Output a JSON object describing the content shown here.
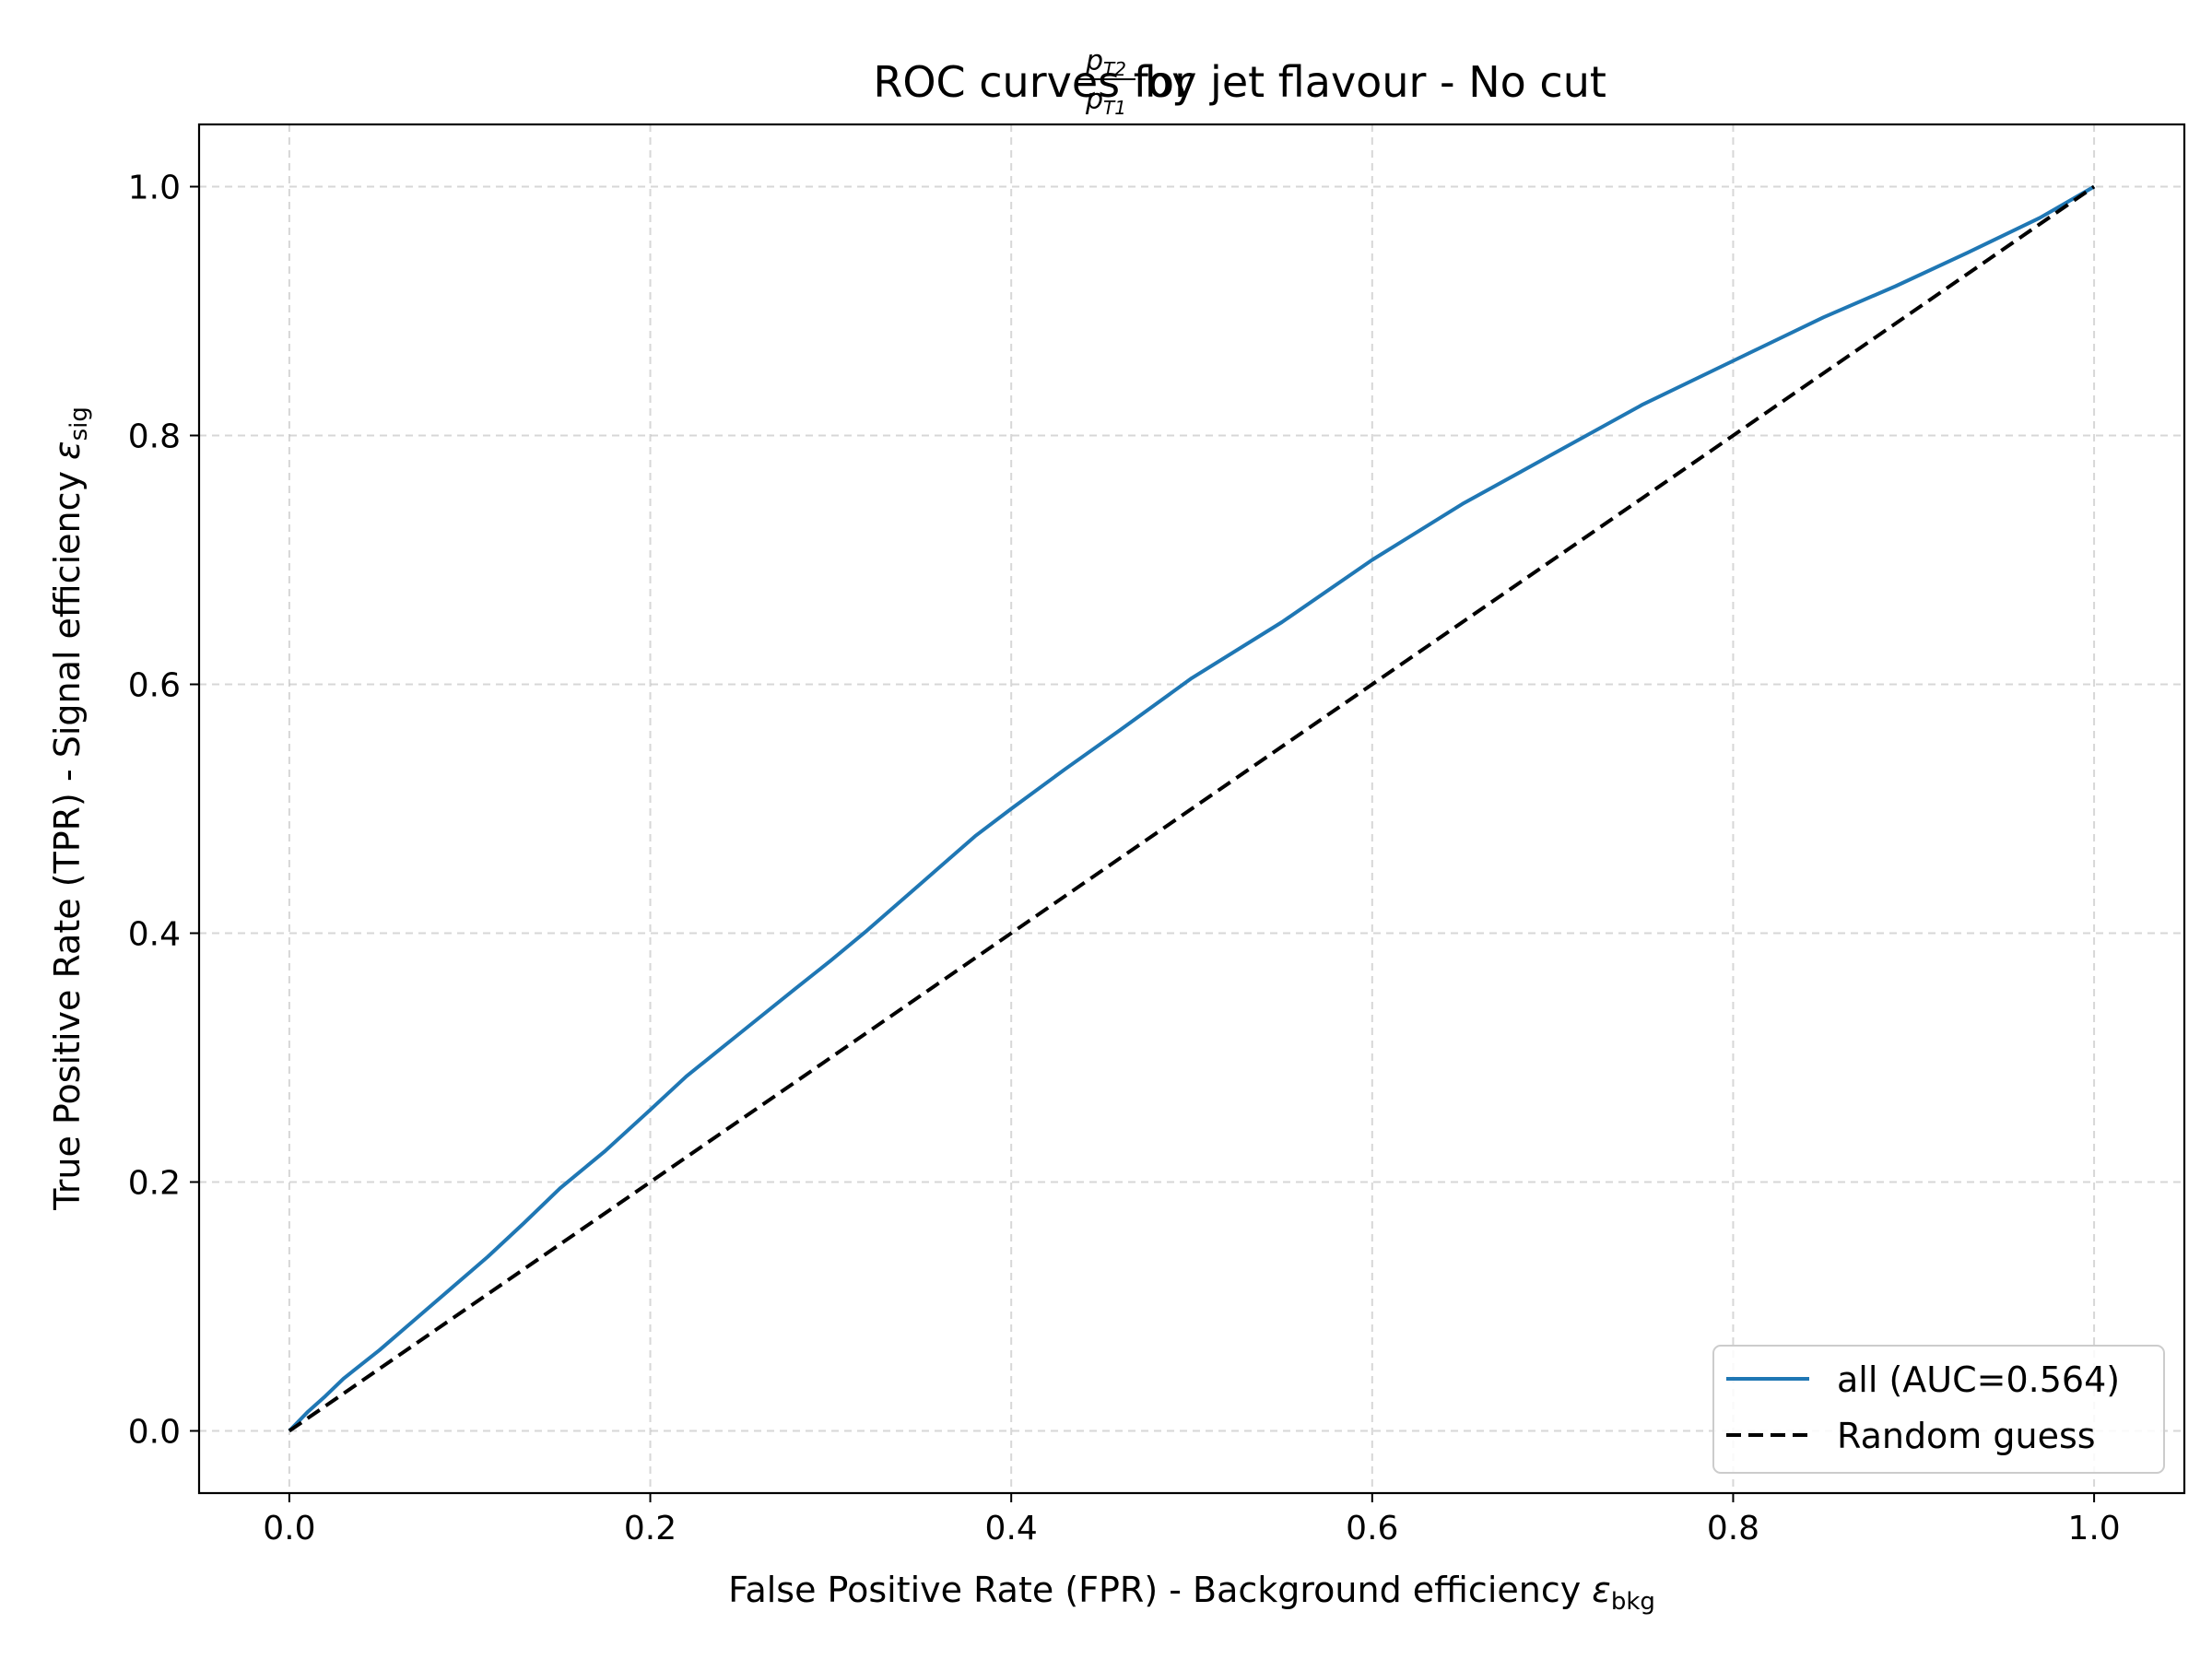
{
  "chart_data": {
    "type": "line",
    "title": {
      "prefix": "ROC curves for ",
      "fraction_numerator": "p",
      "fraction_numerator_sub": "T2",
      "fraction_denominator": "p",
      "fraction_denominator_sub": "T1",
      "suffix": " by jet flavour - No cut"
    },
    "xlabel": {
      "text": "False Positive Rate (FPR) - Background efficiency ",
      "symbol": "ε",
      "subscript": "bkg"
    },
    "ylabel": {
      "text": "True Positive Rate (TPR) - Signal efficiency ",
      "symbol": "ε",
      "subscript": "sig"
    },
    "xlim": [
      -0.05,
      1.05
    ],
    "ylim": [
      -0.05,
      1.05
    ],
    "xticks": [
      0.0,
      0.2,
      0.4,
      0.6,
      0.8,
      1.0
    ],
    "yticks": [
      0.0,
      0.2,
      0.4,
      0.6,
      0.8,
      1.0
    ],
    "xtick_labels": [
      "0.0",
      "0.2",
      "0.4",
      "0.6",
      "0.8",
      "1.0"
    ],
    "ytick_labels": [
      "0.0",
      "0.2",
      "0.4",
      "0.6",
      "0.8",
      "1.0"
    ],
    "grid": true,
    "legend_position": "lower-right",
    "series": [
      {
        "name": "all (AUC=0.564)",
        "style": "solid",
        "color": "#1f77b4",
        "x": [
          0.0,
          0.01,
          0.02,
          0.03,
          0.05,
          0.07,
          0.09,
          0.11,
          0.13,
          0.15,
          0.175,
          0.2,
          0.22,
          0.25,
          0.28,
          0.3,
          0.32,
          0.35,
          0.38,
          0.4,
          0.43,
          0.46,
          0.5,
          0.55,
          0.6,
          0.65,
          0.7,
          0.75,
          0.8,
          0.85,
          0.89,
          0.93,
          0.97,
          1.0
        ],
        "y": [
          0.0,
          0.015,
          0.028,
          0.042,
          0.065,
          0.09,
          0.115,
          0.14,
          0.167,
          0.195,
          0.225,
          0.258,
          0.285,
          0.32,
          0.355,
          0.378,
          0.402,
          0.44,
          0.478,
          0.5,
          0.532,
          0.563,
          0.605,
          0.65,
          0.7,
          0.745,
          0.785,
          0.825,
          0.86,
          0.895,
          0.92,
          0.947,
          0.975,
          1.0
        ]
      },
      {
        "name": "Random guess",
        "style": "dashed",
        "color": "#000000",
        "x": [
          0.0,
          1.0
        ],
        "y": [
          0.0,
          1.0
        ]
      }
    ]
  }
}
